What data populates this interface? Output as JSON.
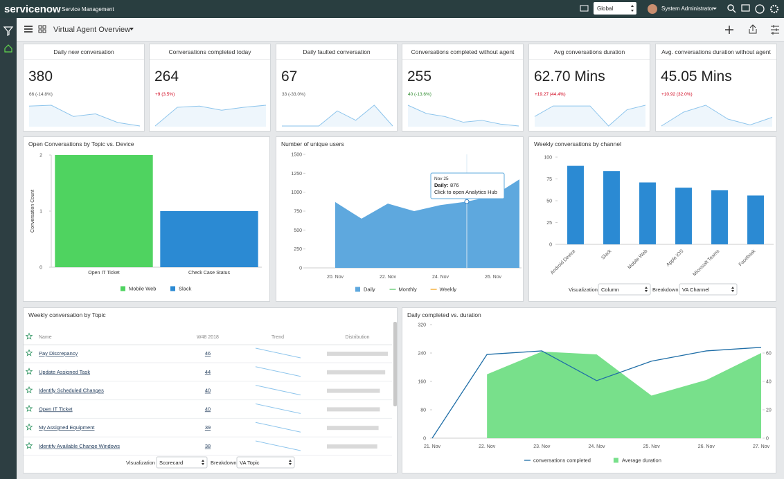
{
  "header": {
    "logo": "servicenow",
    "product": "Service Management",
    "scope": "Global",
    "user": "System Administrator"
  },
  "toolbar": {
    "title": "Virtual Agent Overview"
  },
  "kpis": [
    {
      "title": "Daily new conversation",
      "value": 380,
      "change": "66 (-14.8%)",
      "change_color": "#555555",
      "trend": [
        58,
        60,
        34,
        40,
        20,
        12
      ]
    },
    {
      "title": "Conversations completed today",
      "value": 264,
      "change": "+9 (3.5%)",
      "change_color": "#d0021b",
      "trend": [
        10,
        55,
        58,
        48,
        55,
        60
      ]
    },
    {
      "title": "Daily faulted conversation",
      "value": 67,
      "change": "33 (-33.0%)",
      "change_color": "#555555",
      "trend": [
        5,
        5,
        5,
        45,
        20,
        60,
        5
      ]
    },
    {
      "title": "Conversations completed without agent",
      "value": 255,
      "change": "40 (-13.6%)",
      "change_color": "#2e8b2e",
      "trend": [
        60,
        38,
        30,
        15,
        20,
        10,
        5
      ]
    },
    {
      "title": "Avg conversations duration",
      "value": "62.70 Mins",
      "change": "+19.27 (44.4%)",
      "change_color": "#d0021b",
      "trend": [
        30,
        58,
        58,
        58,
        5,
        48,
        60
      ]
    },
    {
      "title": "Avg. conversations duration without agent",
      "value": "45.05 Mins",
      "change": "+10.92 (32.0%)",
      "change_color": "#d0021b",
      "trend": [
        5,
        45,
        65,
        25,
        8,
        30
      ]
    }
  ],
  "chart_data": [
    {
      "type": "bar",
      "title": "Open Conversations by Topic vs. Device",
      "ylabel": "Conversation Count",
      "categories": [
        "Open IT Ticket",
        "Check Case Status"
      ],
      "series": [
        {
          "name": "Mobile Web",
          "color": "#4fd360",
          "values": [
            2,
            null
          ]
        },
        {
          "name": "Slack",
          "color": "#2b8ad3",
          "values": [
            null,
            1
          ]
        }
      ],
      "ylim": [
        0,
        2
      ],
      "yticks": [
        0,
        1,
        2
      ],
      "legend": "bottom"
    },
    {
      "type": "area",
      "title": "Number of unique users",
      "categories": [
        "20. Nov",
        null,
        "22. Nov",
        null,
        "24. Nov",
        null,
        "26. Nov",
        null
      ],
      "series": [
        {
          "name": "Daily",
          "type": "area",
          "color": "#5ea8de",
          "values": [
            870,
            650,
            850,
            750,
            830,
            876,
            950,
            1170
          ]
        },
        {
          "name": "Monthly",
          "type": "line",
          "color": "#5cc96b"
        },
        {
          "name": "Weekly",
          "type": "line",
          "color": "#f5a623"
        }
      ],
      "ylim": [
        0,
        1500
      ],
      "yticks": [
        0,
        250,
        500,
        750,
        1000,
        1250,
        1500
      ],
      "legend": "bottom",
      "tooltip": {
        "date": "Nov 25",
        "label": "Daily:",
        "action": "Click to open Analytics Hub"
      }
    },
    {
      "type": "bar",
      "title": "Weekly conversations by channel",
      "categories": [
        "Android Device",
        "Slack",
        "Mobile Web",
        "Apple iOS",
        "Microsoft Teams",
        "Facebook"
      ],
      "values": [
        90,
        84,
        71,
        65,
        62,
        56
      ],
      "color": "#2b8ad3",
      "ylim": [
        0,
        100
      ],
      "yticks": [
        0,
        25,
        50,
        75,
        100
      ],
      "controls": [
        {
          "label": "Visualization",
          "value": "Column"
        },
        {
          "label": "Breakdown",
          "value": "VA Channel"
        }
      ]
    },
    {
      "type": "combo",
      "title": "Daily completed vs. duration",
      "categories": [
        "21. Nov",
        "22. Nov",
        "23. Nov",
        "24. Nov",
        "25. Nov",
        "26. Nov",
        "27. Nov"
      ],
      "series": [
        {
          "name": "conversations completed",
          "type": "line",
          "color": "#1f6ea7",
          "values": [
            0,
            236,
            246,
            162,
            217,
            246,
            256
          ]
        },
        {
          "name": "Average duration",
          "type": "area",
          "axis": "y2",
          "color": "#78e08b",
          "values": [
            null,
            45,
            61,
            59,
            30,
            41,
            60
          ]
        }
      ],
      "ylim": [
        0,
        320
      ],
      "yticks": [
        0,
        80,
        160,
        240,
        320
      ],
      "y2lim": [
        0,
        80
      ],
      "y2ticks": [
        0,
        20,
        40,
        60
      ],
      "legend": "bottom"
    }
  ],
  "topic_table": {
    "title": "Weekly conversation by Topic",
    "columns": [
      "Name",
      "W48 2018",
      "Trend",
      "Distribution"
    ],
    "rows": [
      {
        "name": "Pay Discrepancy",
        "value": 46
      },
      {
        "name": "Update Assigned Task",
        "value": 44
      },
      {
        "name": "Identify Scheduled Changes",
        "value": 40
      },
      {
        "name": "Open IT Ticket",
        "value": 40
      },
      {
        "name": "My Assigned Equipment",
        "value": 39
      },
      {
        "name": "Identify Available Change Windows",
        "value": 38
      }
    ],
    "controls": [
      {
        "label": "Visualization",
        "value": "Scorecard"
      },
      {
        "label": "Breakdown",
        "value": "VA Topic"
      }
    ]
  }
}
